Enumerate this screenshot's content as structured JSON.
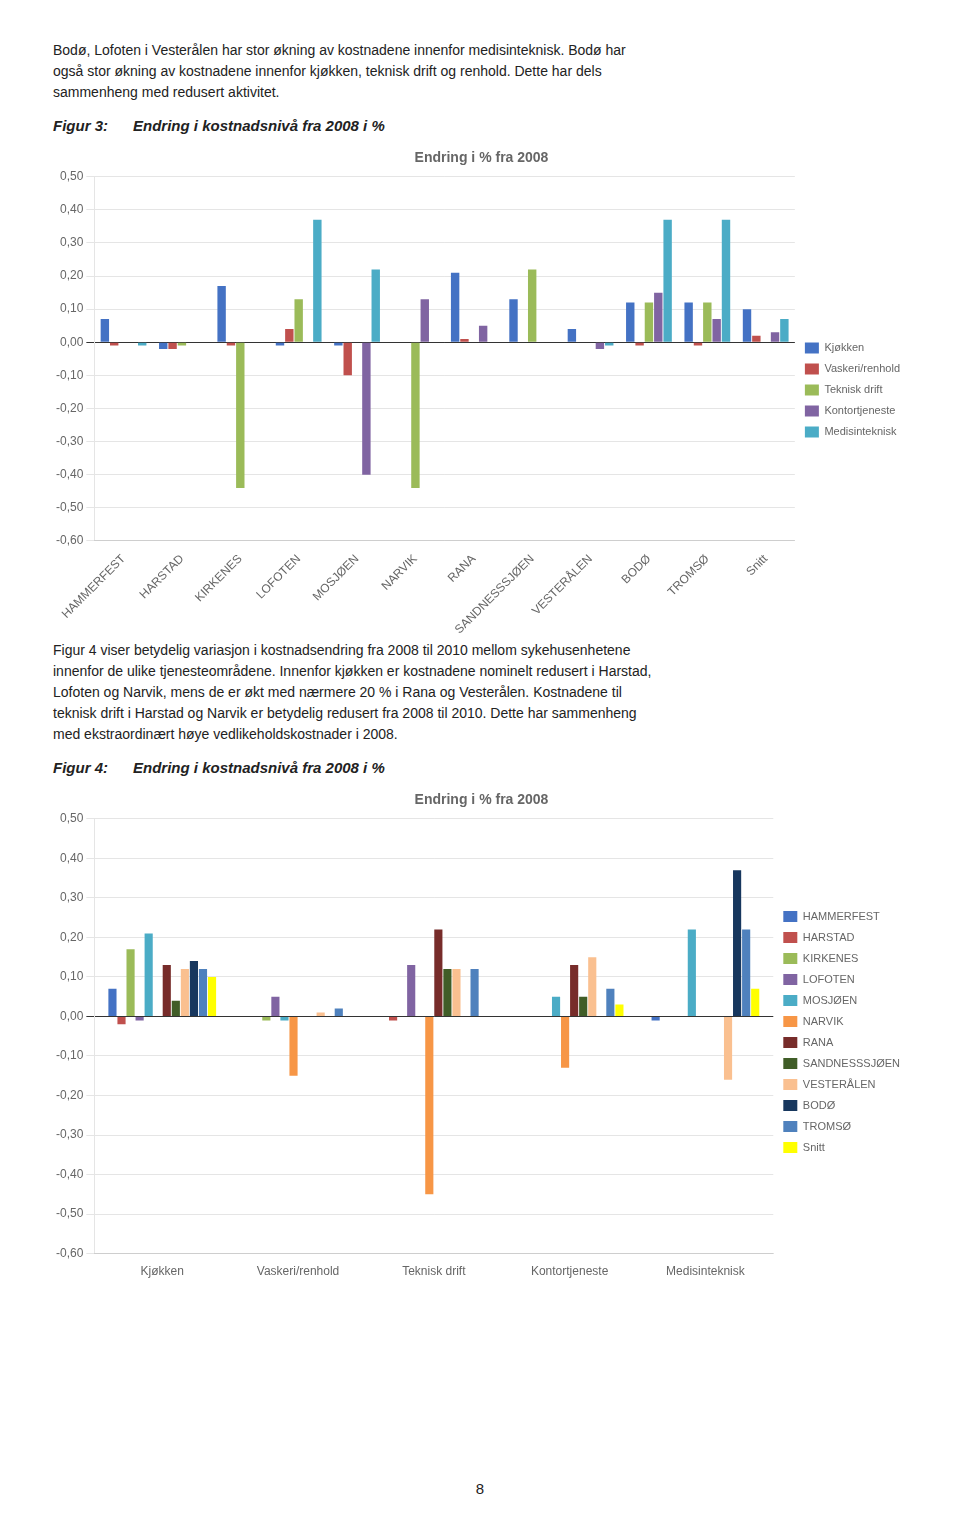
{
  "chart_data": [
    {
      "type": "bar",
      "title": "Endring i % fra 2008",
      "categories": [
        "HAMMERFEST",
        "HARSTAD",
        "KIRKENES",
        "LOFOTEN",
        "MOSJØEN",
        "NARVIK",
        "RANA",
        "SANDNESSSJØEN",
        "VESTERÅLEN",
        "BODØ",
        "TROMSØ",
        "Snitt"
      ],
      "series": [
        {
          "name": "Kjøkken",
          "color": "#4472C4",
          "values": [
            0.07,
            -0.02,
            0.17,
            -0.01,
            -0.01,
            0.0,
            0.21,
            0.13,
            0.04,
            0.12,
            0.12,
            0.1
          ]
        },
        {
          "name": "Vaskeri/renhold",
          "color": "#C0504D",
          "values": [
            -0.01,
            -0.02,
            -0.01,
            0.04,
            -0.1,
            0.0,
            0.01,
            0.0,
            0.0,
            -0.01,
            -0.01,
            0.02
          ]
        },
        {
          "name": "Teknisk drift",
          "color": "#9BBB59",
          "values": [
            0.0,
            -0.01,
            -0.44,
            0.13,
            0.0,
            -0.44,
            0.0,
            0.22,
            0.0,
            0.12,
            0.12,
            0.0
          ]
        },
        {
          "name": "Kontortjeneste",
          "color": "#8064A2",
          "values": [
            0.0,
            0.0,
            0.0,
            0.0,
            -0.4,
            0.13,
            0.05,
            0.0,
            -0.02,
            0.15,
            0.07,
            0.03
          ]
        },
        {
          "name": "Medisinteknisk",
          "color": "#4BACC6",
          "values": [
            -0.01,
            0.0,
            0.0,
            0.37,
            0.22,
            0.0,
            0.0,
            0.0,
            -0.01,
            0.37,
            0.37,
            0.07
          ]
        }
      ],
      "ylim": [
        -0.6,
        0.5
      ],
      "yticks": [
        {
          "value": -0.6,
          "label": "-0,60"
        },
        {
          "value": -0.5,
          "label": "-0,50"
        },
        {
          "value": -0.4,
          "label": "-0,40"
        },
        {
          "value": -0.3,
          "label": "-0,30"
        },
        {
          "value": -0.2,
          "label": "-0,20"
        },
        {
          "value": -0.1,
          "label": "-0,10"
        },
        {
          "value": 0,
          "label": "0,00"
        },
        {
          "value": 0.1,
          "label": "0,10"
        },
        {
          "value": 0.2,
          "label": "0,20"
        },
        {
          "value": 0.3,
          "label": "0,30"
        },
        {
          "value": 0.4,
          "label": "0,40"
        },
        {
          "value": 0.5,
          "label": "0,50"
        }
      ],
      "grid": true,
      "legend": "right"
    },
    {
      "type": "bar",
      "title": "Endring i % fra 2008",
      "categories": [
        "Kjøkken",
        "Vaskeri/renhold",
        "Teknisk drift",
        "Kontortjeneste",
        "Medisinteknisk"
      ],
      "series": [
        {
          "name": "HAMMERFEST",
          "color": "#4472C4",
          "values": [
            0.07,
            0.0,
            0.0,
            0.0,
            -0.01
          ]
        },
        {
          "name": "HARSTAD",
          "color": "#C0504D",
          "values": [
            -0.02,
            0.0,
            -0.01,
            0.0,
            0.0
          ]
        },
        {
          "name": "KIRKENES",
          "color": "#9BBB59",
          "values": [
            0.17,
            -0.01,
            0.0,
            0.0,
            0.0
          ]
        },
        {
          "name": "LOFOTEN",
          "color": "#8064A2",
          "values": [
            -0.01,
            0.05,
            0.13,
            0.0,
            0.0
          ]
        },
        {
          "name": "MOSJØEN",
          "color": "#4BACC6",
          "values": [
            0.21,
            -0.01,
            0.0,
            0.05,
            0.22
          ]
        },
        {
          "name": "NARVIK",
          "color": "#F79646",
          "values": [
            0.0,
            -0.15,
            -0.45,
            -0.13,
            0.0
          ]
        },
        {
          "name": "RANA",
          "color": "#772C2A",
          "values": [
            0.13,
            0.0,
            0.22,
            0.13,
            0.0
          ]
        },
        {
          "name": "SANDNESSSJØEN",
          "color": "#405D27",
          "values": [
            0.04,
            0.0,
            0.12,
            0.05,
            0.0
          ]
        },
        {
          "name": "VESTERÅLEN",
          "color": "#FAC090",
          "values": [
            0.12,
            0.01,
            0.12,
            0.15,
            -0.16
          ]
        },
        {
          "name": "BODØ",
          "color": "#17375E",
          "values": [
            0.14,
            0.0,
            0.0,
            0.0,
            0.37
          ]
        },
        {
          "name": "TROMSØ",
          "color": "#4F81BD",
          "values": [
            0.12,
            0.02,
            0.12,
            0.07,
            0.22
          ]
        },
        {
          "name": "Snitt",
          "color": "#FFFF00",
          "values": [
            0.1,
            0.0,
            0.0,
            0.03,
            0.07
          ]
        }
      ],
      "ylim": [
        -0.6,
        0.5
      ],
      "yticks": [
        {
          "value": -0.6,
          "label": "-0,60"
        },
        {
          "value": -0.5,
          "label": "-0,50"
        },
        {
          "value": -0.4,
          "label": "-0,40"
        },
        {
          "value": -0.3,
          "label": "-0,30"
        },
        {
          "value": -0.2,
          "label": "-0,20"
        },
        {
          "value": -0.1,
          "label": "-0,10"
        },
        {
          "value": 0,
          "label": "0,00"
        },
        {
          "value": 0.1,
          "label": "0,10"
        },
        {
          "value": 0.2,
          "label": "0,20"
        },
        {
          "value": 0.3,
          "label": "0,30"
        },
        {
          "value": 0.4,
          "label": "0,40"
        },
        {
          "value": 0.5,
          "label": "0,50"
        }
      ],
      "grid": true,
      "legend": "right"
    }
  ],
  "page": {
    "paragraphs": [
      [
        "Bodø, Lofoten i Vesterålen har stor økning av kostnadene innenfor medisinteknisk. Bodø har",
        "også stor økning av kostnadene innenfor kjøkken, teknisk drift og renhold. Dette har dels",
        "sammenheng med redusert aktivitet."
      ],
      [
        "Figur 4 viser betydelig variasjon i kostnadsendring fra 2008 til 2010 mellom sykehusenhetene",
        "innenfor de ulike tjenesteområdene. Innenfor kjøkken er kostnadene nominelt redusert i Harstad,",
        "Lofoten og Narvik, mens de er økt med nærmere 20 % i Rana og Vesterålen. Kostnadene til",
        "teknisk drift i Harstad og Narvik er betydelig redusert fra 2008 til 2010. Dette har sammenheng",
        "med ekstraordinært høye vedlikeholdskostnader i 2008."
      ]
    ],
    "figure_captions": [
      [
        "Figur 3:",
        "Endring i kostnadsnivå fra 2008 i %"
      ],
      [
        "Figur 4:",
        "Endring i kostnadsnivå fra 2008 i %"
      ]
    ],
    "page_number": "8"
  }
}
